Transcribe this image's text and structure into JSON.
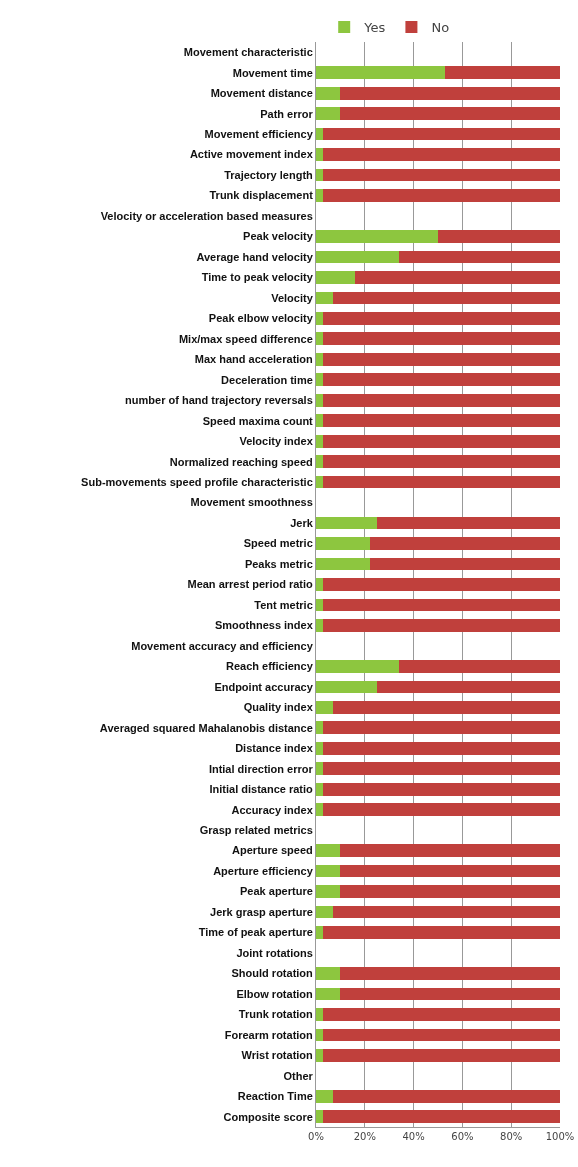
{
  "chart_data": {
    "type": "bar",
    "orientation": "horizontal",
    "stacked": true,
    "legend": "top",
    "grid": "x",
    "categories": [
      "Movement characteristic",
      "Movement time",
      "Movement distance",
      "Path error",
      "Movement efficiency",
      "Active movement index",
      "Trajectory length",
      "Trunk displacement",
      "Velocity or acceleration based measures",
      "Peak velocity",
      "Average hand velocity",
      "Time to peak velocity",
      "Velocity",
      "Peak elbow velocity",
      "Mix/max speed difference",
      "Max hand acceleration",
      "Deceleration time",
      "number of hand trajectory reversals",
      "Speed maxima count",
      "Velocity index",
      "Normalized reaching speed",
      "Sub-movements speed profile characteristic",
      "Movement smoothness",
      "Jerk",
      "Speed metric",
      "Peaks metric",
      "Mean arrest period ratio",
      "Tent metric",
      "Smoothness index",
      "Movement accuracy and efficiency",
      "Reach efficiency",
      "Endpoint accuracy",
      "Quality index",
      "Averaged squared Mahalanobis distance",
      "Distance index",
      "Intial direction error",
      "Initial distance ratio",
      "Accuracy index",
      "Grasp related metrics",
      "Aperture speed",
      "Aperture efficiency",
      "Peak aperture",
      "Jerk grasp aperture",
      "Time of peak aperture",
      "Joint rotations",
      "Should rotation",
      "Elbow rotation",
      "Trunk rotation",
      "Forearm rotation",
      "Wrist rotation",
      "Other",
      "Reaction Time",
      "Composite score"
    ],
    "series": [
      {
        "name": "Yes",
        "color": "#8dc63f",
        "values": [
          null,
          53,
          10,
          10,
          3,
          3,
          3,
          3,
          null,
          50,
          34,
          16,
          7,
          3,
          3,
          3,
          3,
          3,
          3,
          3,
          3,
          3,
          null,
          25,
          22,
          22,
          3,
          3,
          3,
          null,
          34,
          25,
          7,
          3,
          3,
          3,
          3,
          3,
          null,
          10,
          10,
          10,
          7,
          3,
          null,
          10,
          10,
          3,
          3,
          3,
          null,
          7,
          3
        ]
      },
      {
        "name": "No",
        "color": "#c0403c",
        "values": [
          null,
          47,
          90,
          90,
          97,
          97,
          97,
          97,
          null,
          50,
          66,
          84,
          93,
          97,
          97,
          97,
          97,
          97,
          97,
          97,
          97,
          97,
          null,
          75,
          78,
          78,
          97,
          97,
          97,
          null,
          66,
          75,
          93,
          97,
          97,
          97,
          97,
          97,
          null,
          90,
          90,
          90,
          93,
          97,
          null,
          90,
          90,
          97,
          97,
          97,
          null,
          93,
          97
        ]
      }
    ],
    "xlim": [
      0,
      100
    ],
    "xticks": [
      {
        "value": 0,
        "label": "0%"
      },
      {
        "value": 20,
        "label": "20%"
      },
      {
        "value": 40,
        "label": "40%"
      },
      {
        "value": 60,
        "label": "60%"
      },
      {
        "value": 80,
        "label": "80%"
      },
      {
        "value": 100,
        "label": "100%"
      }
    ]
  }
}
